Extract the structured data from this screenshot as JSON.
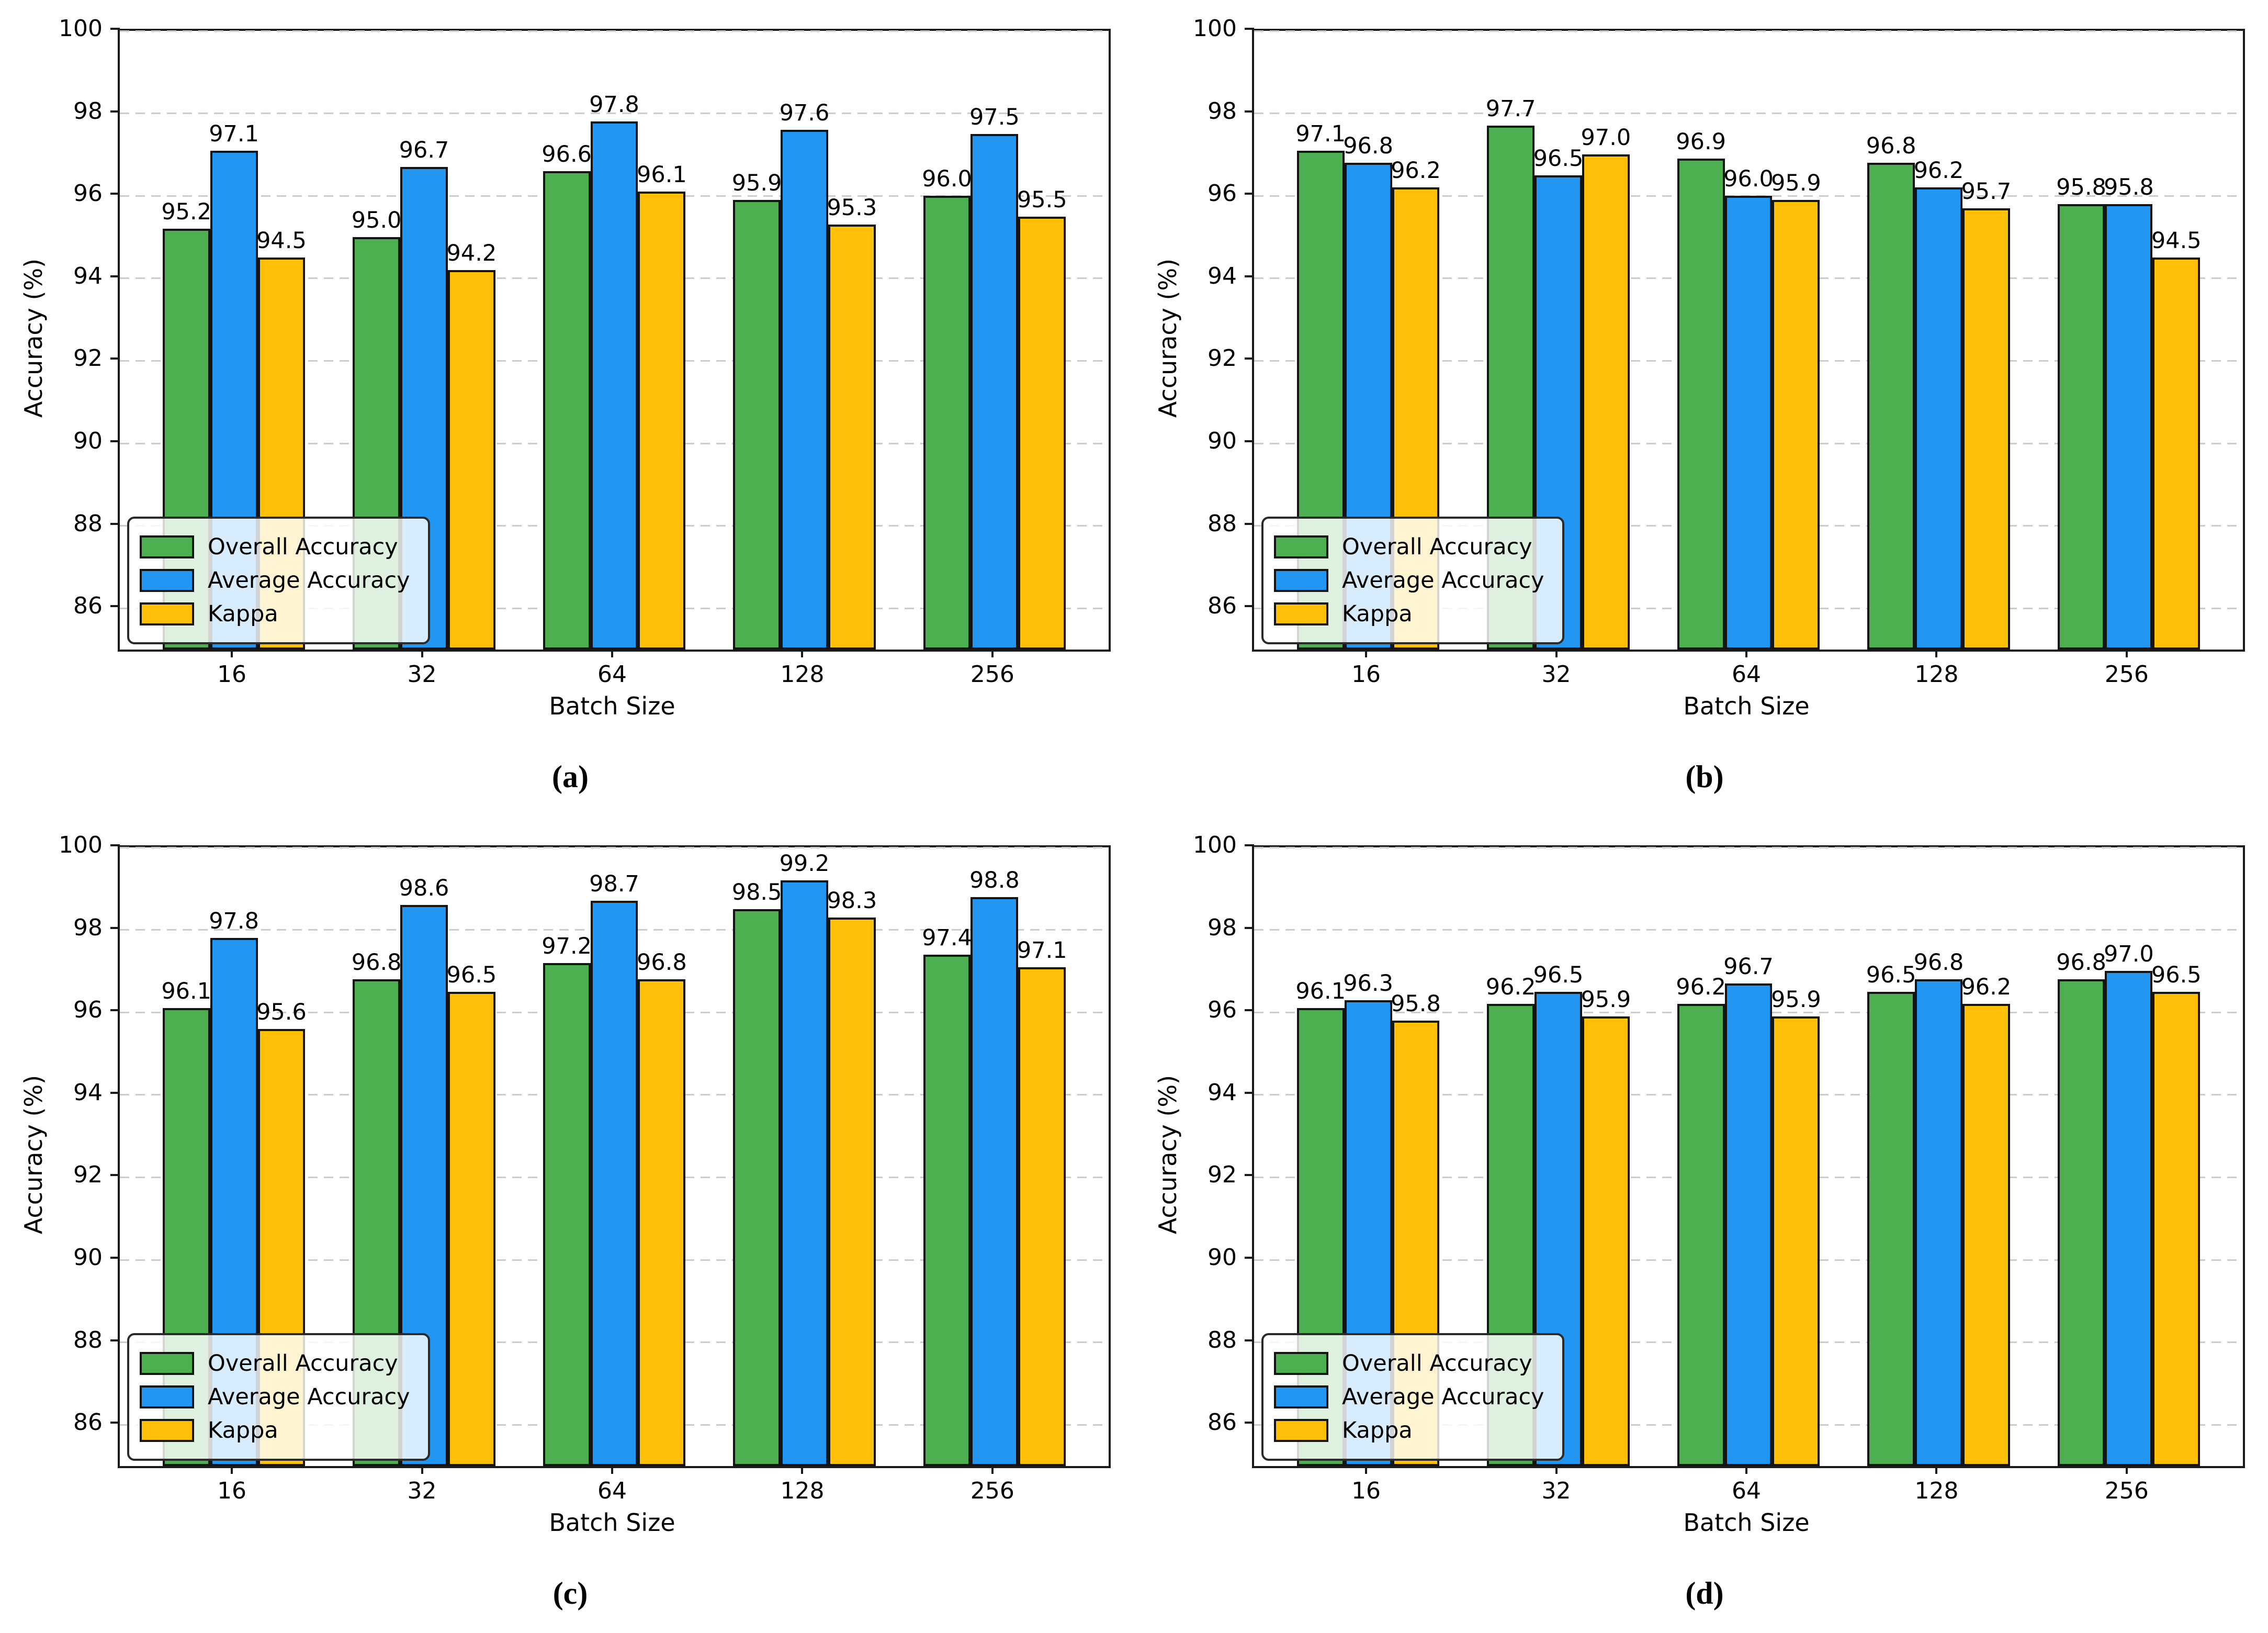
{
  "figure": {
    "background_color": "#ffffff",
    "grid_style": "horizontal dashed",
    "grid_color": "#cccccc",
    "bar_edge_color": "#141414",
    "legend_position": "lower-left"
  },
  "chart_data": [
    {
      "type": "bar",
      "caption": "(a)",
      "xlabel": "Batch Size",
      "ylabel": "Accuracy (%)",
      "categories": [
        "16",
        "32",
        "64",
        "128",
        "256"
      ],
      "ylim": [
        85,
        100
      ],
      "yticks": [
        86,
        88,
        90,
        92,
        94,
        96,
        98,
        100
      ],
      "series": [
        {
          "name": "Overall Accuracy",
          "color": "#4CAF50",
          "values": [
            95.2,
            95.0,
            96.6,
            95.9,
            96.0
          ]
        },
        {
          "name": "Average Accuracy",
          "color": "#2196F3",
          "values": [
            97.1,
            96.7,
            97.8,
            97.6,
            97.5
          ]
        },
        {
          "name": "Kappa",
          "color": "#FFC107",
          "values": [
            94.5,
            94.2,
            96.1,
            95.3,
            95.5
          ]
        }
      ]
    },
    {
      "type": "bar",
      "caption": "(b)",
      "xlabel": "Batch Size",
      "ylabel": "Accuracy (%)",
      "categories": [
        "16",
        "32",
        "64",
        "128",
        "256"
      ],
      "ylim": [
        85,
        100
      ],
      "yticks": [
        86,
        88,
        90,
        92,
        94,
        96,
        98,
        100
      ],
      "series": [
        {
          "name": "Overall Accuracy",
          "color": "#4CAF50",
          "values": [
            97.1,
            97.7,
            96.9,
            96.8,
            95.8
          ]
        },
        {
          "name": "Average Accuracy",
          "color": "#2196F3",
          "values": [
            96.8,
            96.5,
            96.0,
            96.2,
            95.8
          ]
        },
        {
          "name": "Kappa",
          "color": "#FFC107",
          "values": [
            96.2,
            97.0,
            95.9,
            95.7,
            94.5
          ]
        }
      ]
    },
    {
      "type": "bar",
      "caption": "(c)",
      "xlabel": "Batch Size",
      "ylabel": "Accuracy (%)",
      "categories": [
        "16",
        "32",
        "64",
        "128",
        "256"
      ],
      "ylim": [
        85,
        100
      ],
      "yticks": [
        86,
        88,
        90,
        92,
        94,
        96,
        98,
        100
      ],
      "series": [
        {
          "name": "Overall Accuracy",
          "color": "#4CAF50",
          "values": [
            96.1,
            96.8,
            97.2,
            98.5,
            97.4
          ]
        },
        {
          "name": "Average Accuracy",
          "color": "#2196F3",
          "values": [
            97.8,
            98.6,
            98.7,
            99.2,
            98.8
          ]
        },
        {
          "name": "Kappa",
          "color": "#FFC107",
          "values": [
            95.6,
            96.5,
            96.8,
            98.3,
            97.1
          ]
        }
      ]
    },
    {
      "type": "bar",
      "caption": "(d)",
      "xlabel": "Batch Size",
      "ylabel": "Accuracy (%)",
      "categories": [
        "16",
        "32",
        "64",
        "128",
        "256"
      ],
      "ylim": [
        85,
        100
      ],
      "yticks": [
        86,
        88,
        90,
        92,
        94,
        96,
        98,
        100
      ],
      "series": [
        {
          "name": "Overall Accuracy",
          "color": "#4CAF50",
          "values": [
            96.1,
            96.2,
            96.2,
            96.5,
            96.8
          ]
        },
        {
          "name": "Average Accuracy",
          "color": "#2196F3",
          "values": [
            96.3,
            96.5,
            96.7,
            96.8,
            97.0
          ]
        },
        {
          "name": "Kappa",
          "color": "#FFC107",
          "values": [
            95.8,
            95.9,
            95.9,
            96.2,
            96.5
          ]
        }
      ]
    }
  ]
}
